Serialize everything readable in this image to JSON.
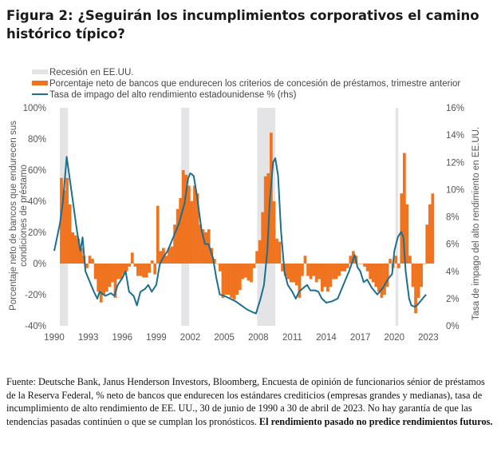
{
  "title": "Figura 2: ¿Seguirán los incumplimientos corporativos el camino histórico típico?",
  "footer": {
    "source": "Fuente: Deutsche Bank, Janus Henderson Investors, Bloomberg, Encuesta de opinión de funcionarios sénior de préstamos de la Reserva Federal, % neto de bancos que endurecen los estándares crediticios (empresas grandes y medianas), tasa de incumplimiento de alto rendimiento de EE. UU., 30 de junio de 1990 a 30 de abril de 2023. No hay garantía de que las tendencias pasadas continúen o que se cumplan los pronósticos. ",
    "disclaimer": "El rendimiento pasado no predice rendimientos futuros."
  },
  "chart_data": {
    "type": "bar+line",
    "legend": {
      "placement": "top-left",
      "items": [
        {
          "label": "Recesión en EE.UU.",
          "color": "#e4e4e6"
        },
        {
          "label": "Porcentaje neto de bancos que endurecen los criterios de concesión de préstamos, trimestre anterior",
          "color": "#f07320"
        },
        {
          "label": "Tasa de impago del alto rendimiento estadounidense % (rhs)",
          "color": "#1b6f8f"
        }
      ]
    },
    "ylabel_left": "Porcentaje neto de bancos que endurecen sus condiciones de préstamo",
    "ylabel_right": "Tasa de impago del alto rendimiento en EE.UU.",
    "ylim_left": [
      -40,
      100
    ],
    "ylim_right": [
      0,
      16
    ],
    "yticks_left": [
      "100%",
      "80%",
      "60%",
      "40%",
      "20%",
      "0%",
      "-20%",
      "-40%"
    ],
    "yticks_right": [
      "16%",
      "14%",
      "12%",
      "10%",
      "8%",
      "6%",
      "4%",
      "2%",
      "0%"
    ],
    "xticks": [
      "1990",
      "1993",
      "1996",
      "1999",
      "2002",
      "2005",
      "2008",
      "2011",
      "2014",
      "2017",
      "2020",
      "2023"
    ],
    "grid": false,
    "recessions": [
      [
        1990.5,
        1991.2
      ],
      [
        2001.2,
        2001.9
      ],
      [
        2007.9,
        2009.5
      ],
      [
        2020.1,
        2020.35
      ]
    ],
    "bars": {
      "start_quarter": "1990Q3",
      "values": [
        55,
        47,
        55,
        38,
        20,
        18,
        16,
        10,
        5,
        -3,
        5,
        3,
        -10,
        -18,
        -25,
        -20,
        -18,
        -15,
        -12,
        -22,
        -10,
        -10,
        -7,
        -5,
        -2,
        7,
        -2,
        -8,
        -8,
        -9,
        -9,
        -6,
        2,
        -7,
        37,
        8,
        10,
        5,
        10,
        11,
        25,
        35,
        42,
        60,
        57,
        50,
        40,
        50,
        45,
        25,
        22,
        20,
        22,
        10,
        3,
        0,
        -5,
        -22,
        -20,
        -20,
        -22,
        -23,
        -20,
        -17,
        -10,
        -9,
        -11,
        -12,
        -3,
        8,
        15,
        33,
        56,
        58,
        84,
        40,
        16,
        14,
        -5,
        -8,
        -10,
        -12,
        -12,
        -14,
        -22,
        -8,
        5,
        -8,
        -10,
        -8,
        -12,
        -10,
        -18,
        -15,
        -18,
        -15,
        -10,
        -10,
        -8,
        -5,
        -5,
        -3,
        5,
        8,
        5,
        0,
        0,
        -2,
        -5,
        -10,
        -12,
        -15,
        -18,
        -22,
        -20,
        -15,
        3,
        -3,
        5,
        -3,
        45,
        71,
        38,
        5,
        -15,
        -32,
        -22,
        -15,
        0,
        25,
        38,
        45
      ]
    },
    "line": [
      [
        1990.0,
        5.5
      ],
      [
        1990.5,
        7.5
      ],
      [
        1990.75,
        9
      ],
      [
        1991.1,
        12.4
      ],
      [
        1991.5,
        10
      ],
      [
        1992.0,
        7
      ],
      [
        1992.3,
        5.5
      ],
      [
        1992.5,
        6.5
      ],
      [
        1992.75,
        4
      ],
      [
        1993.0,
        3.5
      ],
      [
        1993.5,
        2.5
      ],
      [
        1993.8,
        2
      ],
      [
        1994.0,
        2.5
      ],
      [
        1994.5,
        2.2
      ],
      [
        1995.0,
        2.4
      ],
      [
        1995.3,
        2.2
      ],
      [
        1995.6,
        3
      ],
      [
        1996.0,
        3.5
      ],
      [
        1996.3,
        4
      ],
      [
        1996.6,
        2.5
      ],
      [
        1997.0,
        2.2
      ],
      [
        1997.3,
        1.5
      ],
      [
        1997.6,
        2.5
      ],
      [
        1998.0,
        2.7
      ],
      [
        1998.3,
        3
      ],
      [
        1998.6,
        2.5
      ],
      [
        1999.0,
        3
      ],
      [
        1999.3,
        4.5
      ],
      [
        1999.6,
        5
      ],
      [
        2000.0,
        5.5
      ],
      [
        2000.5,
        6.5
      ],
      [
        2001.0,
        7.5
      ],
      [
        2001.5,
        9
      ],
      [
        2001.8,
        10.8
      ],
      [
        2002.0,
        11.2
      ],
      [
        2002.3,
        11
      ],
      [
        2002.6,
        9.5
      ],
      [
        2003.0,
        7
      ],
      [
        2003.3,
        6
      ],
      [
        2003.6,
        6
      ],
      [
        2004.0,
        5
      ],
      [
        2004.3,
        3.5
      ],
      [
        2004.6,
        2.3
      ],
      [
        2005.0,
        2.2
      ],
      [
        2005.5,
        2.0
      ],
      [
        2006.0,
        1.8
      ],
      [
        2006.5,
        1.5
      ],
      [
        2007.0,
        1.2
      ],
      [
        2007.5,
        1.0
      ],
      [
        2007.8,
        0.9
      ],
      [
        2008.2,
        2
      ],
      [
        2008.5,
        3
      ],
      [
        2008.8,
        5.5
      ],
      [
        2009.0,
        9
      ],
      [
        2009.3,
        12
      ],
      [
        2009.5,
        12.3
      ],
      [
        2009.75,
        11
      ],
      [
        2010.0,
        7
      ],
      [
        2010.3,
        4
      ],
      [
        2010.6,
        3
      ],
      [
        2011.0,
        2.5
      ],
      [
        2011.3,
        2
      ],
      [
        2011.6,
        2.5
      ],
      [
        2012.0,
        2.8
      ],
      [
        2012.3,
        3
      ],
      [
        2012.6,
        2.6
      ],
      [
        2013.0,
        2.6
      ],
      [
        2013.3,
        2.5
      ],
      [
        2013.6,
        2
      ],
      [
        2014.0,
        1.7
      ],
      [
        2014.5,
        1.8
      ],
      [
        2015.0,
        2
      ],
      [
        2015.5,
        3
      ],
      [
        2016.0,
        4
      ],
      [
        2016.5,
        5.2
      ],
      [
        2016.75,
        4.3
      ],
      [
        2017.0,
        4
      ],
      [
        2017.3,
        3.2
      ],
      [
        2017.6,
        3.4
      ],
      [
        2018.0,
        2.8
      ],
      [
        2018.5,
        2.3
      ],
      [
        2019.0,
        2.8
      ],
      [
        2019.5,
        3.5
      ],
      [
        2019.8,
        3.8
      ],
      [
        2020.0,
        5.5
      ],
      [
        2020.3,
        6.5
      ],
      [
        2020.6,
        6.9
      ],
      [
        2020.8,
        6.5
      ],
      [
        2021.0,
        4
      ],
      [
        2021.3,
        2
      ],
      [
        2021.5,
        1.5
      ],
      [
        2021.8,
        1.4
      ],
      [
        2022.0,
        1.5
      ],
      [
        2022.5,
        2
      ],
      [
        2022.8,
        2.3
      ]
    ]
  }
}
